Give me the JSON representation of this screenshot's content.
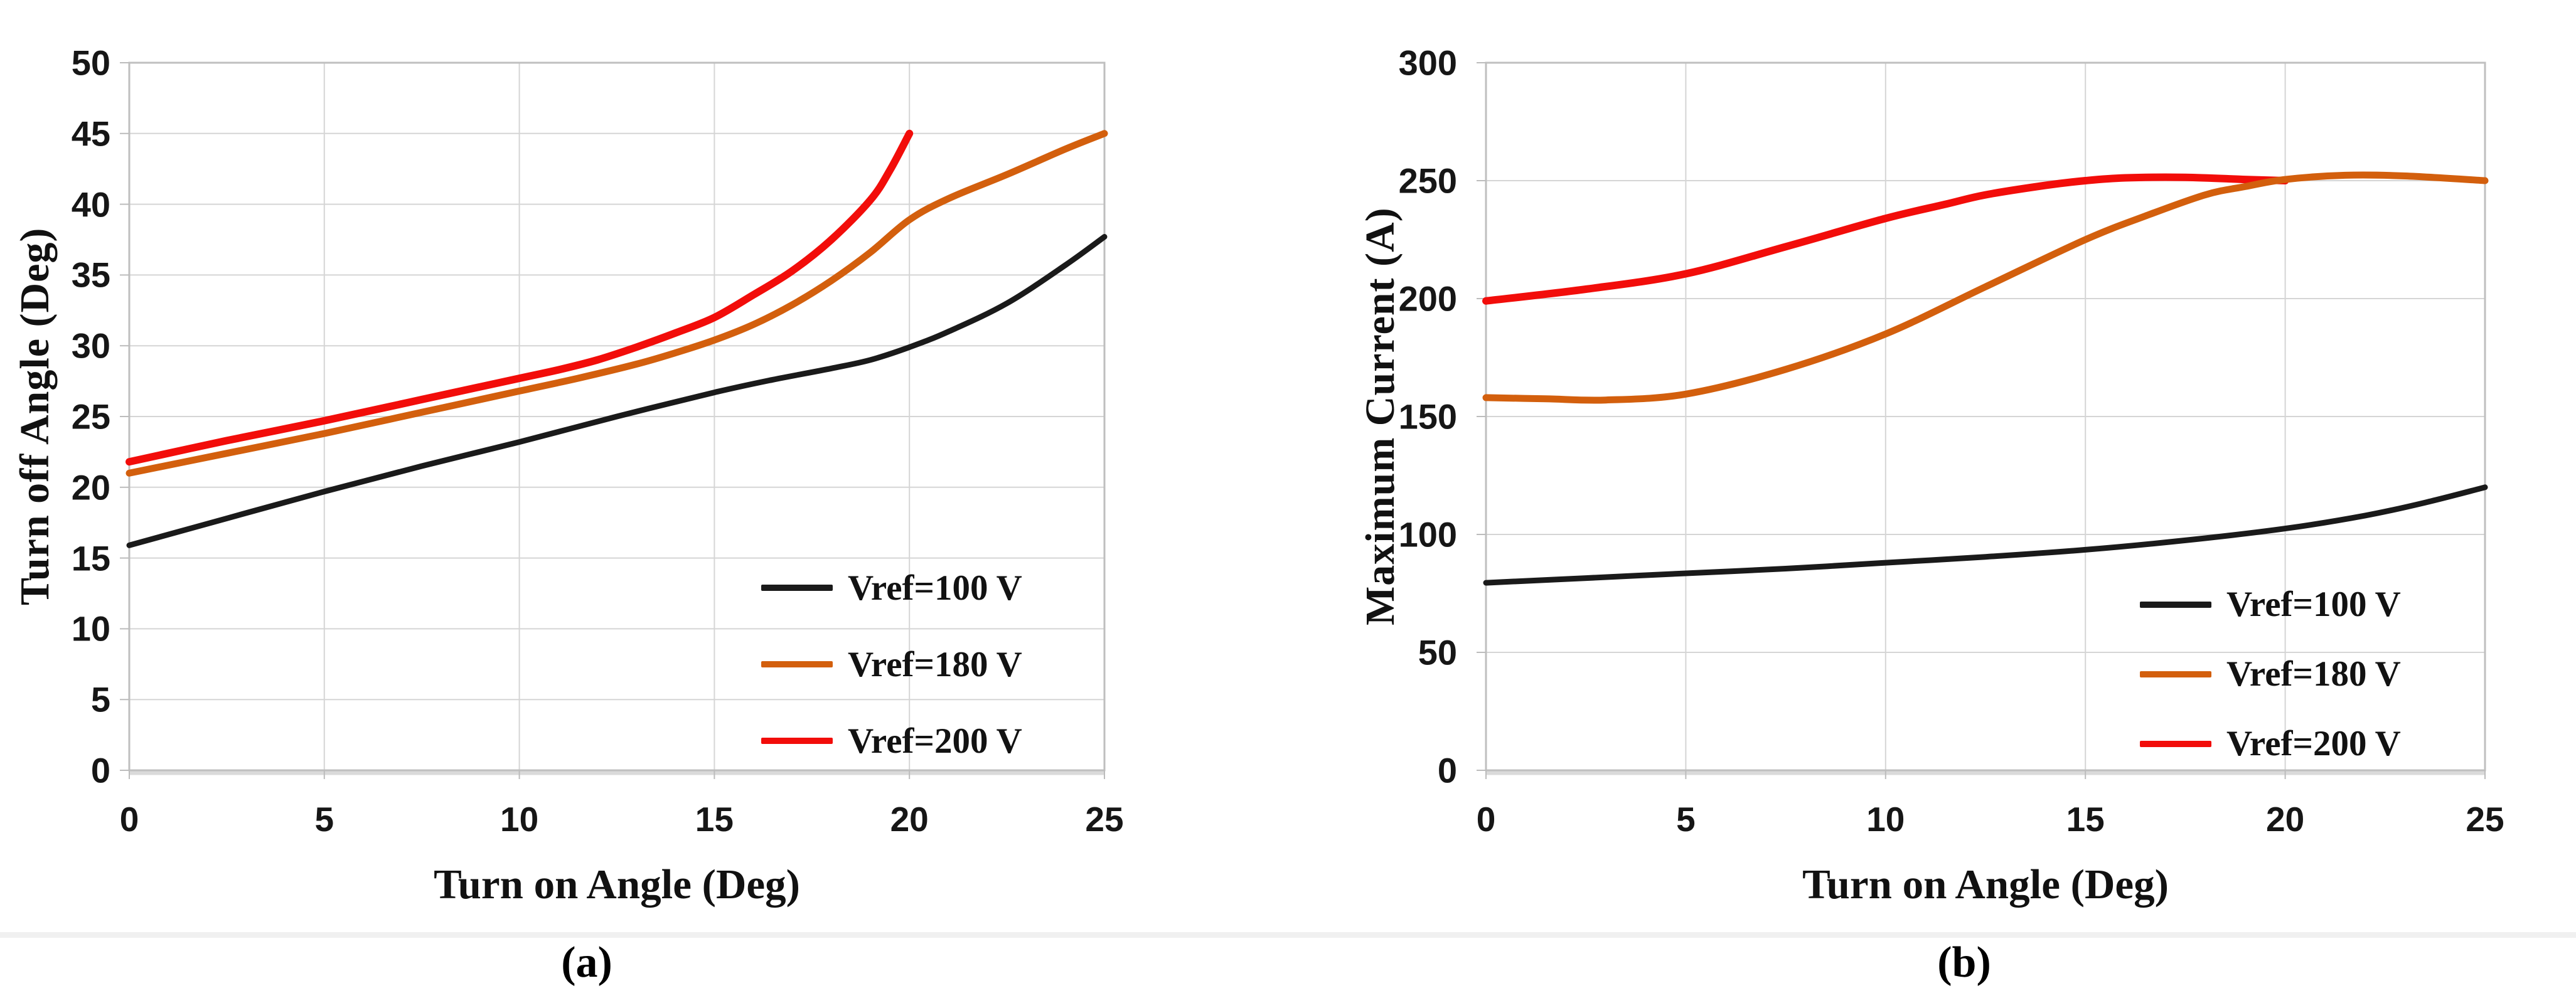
{
  "figure": {
    "captions": [
      "(a)",
      "(b)"
    ],
    "background": "#ffffff",
    "divider_band_color": "#f0f0f0"
  },
  "colors": {
    "grid": "#d5d5d5",
    "axis_border": "#bfbfbf",
    "axis_shadow": "#dadada",
    "tick_mark": "#bcbcbc",
    "tick_text": "#161616",
    "series_black": "#1a1a1a",
    "series_orange": "#d35f0d",
    "series_red": "#f20d0a"
  },
  "chart_data": [
    {
      "type": "line",
      "caption": "(a)",
      "title": "",
      "xlabel": "Turn on Angle (Deg)",
      "ylabel": "Turn off Angle (Deg)",
      "xlim": [
        0,
        25
      ],
      "ylim": [
        0,
        50
      ],
      "xticks": [
        0,
        5,
        10,
        15,
        20,
        25
      ],
      "yticks": [
        0,
        5,
        10,
        15,
        20,
        25,
        30,
        35,
        40,
        45,
        50
      ],
      "grid": true,
      "legend_position": "inside lower right",
      "series": [
        {
          "name": "Vref=100 V",
          "color": "#1a1a1a",
          "stroke_width": 9,
          "x": [
            0,
            2.5,
            5,
            7.5,
            10,
            12.5,
            15,
            16.5,
            18,
            19,
            20,
            21,
            22.5,
            24,
            25
          ],
          "y": [
            15.9,
            17.8,
            19.7,
            21.5,
            23.2,
            25.0,
            26.7,
            27.6,
            28.4,
            29.0,
            29.9,
            31.0,
            33.0,
            35.7,
            37.7
          ]
        },
        {
          "name": "Vref=180 V",
          "color": "#d35f0d",
          "stroke_width": 11,
          "x": [
            0,
            2.5,
            5,
            7.5,
            10,
            11.5,
            13,
            14,
            15,
            16,
            17,
            18,
            19,
            20,
            21,
            22.5,
            24,
            25
          ],
          "y": [
            21.0,
            22.4,
            23.8,
            25.3,
            26.8,
            27.7,
            28.7,
            29.5,
            30.4,
            31.5,
            32.9,
            34.6,
            36.6,
            38.9,
            40.4,
            42.1,
            43.9,
            45.0
          ]
        },
        {
          "name": "Vref=200 V",
          "color": "#f20d0a",
          "stroke_width": 12,
          "x": [
            0,
            2.5,
            5,
            7.5,
            10,
            11,
            12,
            13,
            14,
            15,
            16,
            17,
            18,
            19,
            19.5,
            20
          ],
          "y": [
            21.8,
            23.3,
            24.7,
            26.2,
            27.7,
            28.3,
            29.0,
            29.9,
            30.9,
            32.0,
            33.6,
            35.3,
            37.5,
            40.3,
            42.4,
            45.0
          ]
        }
      ]
    },
    {
      "type": "line",
      "caption": "(b)",
      "title": "",
      "xlabel": "Turn on Angle (Deg)",
      "ylabel": "Maximum Current (A)",
      "xlim": [
        0,
        25
      ],
      "ylim": [
        0,
        300
      ],
      "xticks": [
        0,
        5,
        10,
        15,
        20,
        25
      ],
      "yticks": [
        0,
        50,
        100,
        150,
        200,
        250,
        300
      ],
      "grid": true,
      "legend_position": "inside lower right",
      "series": [
        {
          "name": "Vref=100 V",
          "color": "#1a1a1a",
          "stroke_width": 9,
          "x": [
            0,
            2.5,
            5,
            7.5,
            10,
            12.5,
            15,
            17.5,
            20,
            22,
            23.5,
            25
          ],
          "y": [
            79.5,
            81.5,
            83.5,
            85.5,
            88,
            90.5,
            93.5,
            97.5,
            102.5,
            108,
            113.5,
            120
          ]
        },
        {
          "name": "Vref=180 V",
          "color": "#d35f0d",
          "stroke_width": 11,
          "x": [
            0,
            1.5,
            3,
            5,
            7.5,
            10,
            12.5,
            15,
            16.5,
            18,
            19,
            20,
            21.5,
            23,
            25
          ],
          "y": [
            158,
            157.5,
            157,
            159.5,
            170,
            185,
            205,
            225,
            235,
            244,
            247.5,
            250.5,
            252.3,
            252,
            250
          ]
        },
        {
          "name": "Vref=200 V",
          "color": "#f20d0a",
          "stroke_width": 12,
          "x": [
            0,
            2.5,
            5,
            7.5,
            10,
            11.5,
            12.5,
            14,
            15,
            16,
            17.5,
            19,
            20
          ],
          "y": [
            199,
            204,
            210.5,
            222,
            234,
            240,
            244,
            248,
            250,
            251.2,
            251.4,
            250.5,
            250
          ]
        }
      ]
    }
  ],
  "layout_note_visible_elements_only": "two line charts side by side"
}
